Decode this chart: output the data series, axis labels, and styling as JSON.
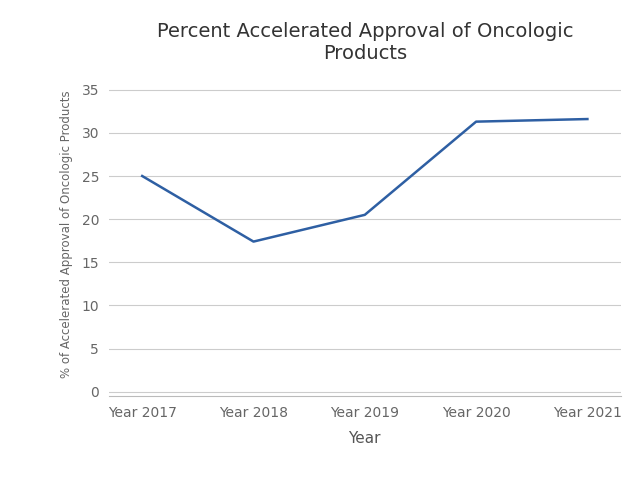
{
  "title": "Percent Accelerated Approval of Oncologic\nProducts",
  "xlabel": "Year",
  "ylabel": "% of Accelerated Approval of Oncologic Products",
  "categories": [
    "Year 2017",
    "Year 2018",
    "Year 2019",
    "Year 2020",
    "Year 2021"
  ],
  "values": [
    25.0,
    17.4,
    20.5,
    31.3,
    31.6
  ],
  "line_color": "#2E5FA3",
  "ylim": [
    -0.5,
    37
  ],
  "yticks": [
    0,
    5,
    10,
    15,
    20,
    25,
    30,
    35
  ],
  "background_color": "#ffffff",
  "grid_color": "#cccccc",
  "title_fontsize": 14,
  "label_fontsize": 11,
  "tick_fontsize": 10,
  "line_width": 1.8
}
